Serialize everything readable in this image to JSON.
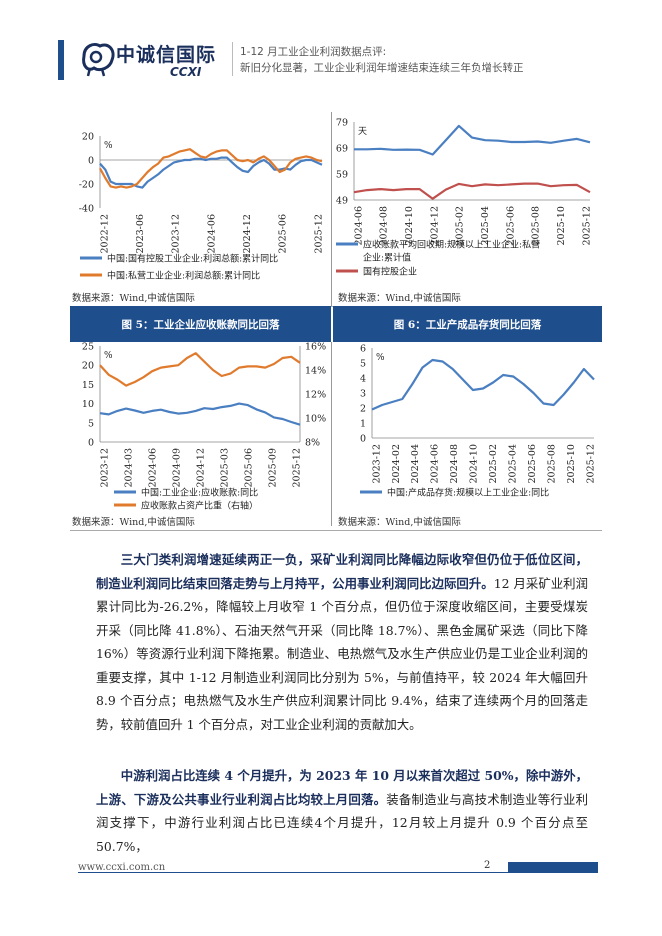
{
  "header": {
    "logo_cn": "中诚信国际",
    "logo_en": "CCXI",
    "title_line1": "1-12 月工业企业利润数据点评:",
    "title_line2": "新旧分化显著，工业企业利润年增速结束连续三年负增长转正",
    "accent": "#1f4e8c"
  },
  "charts_top": {
    "left": {
      "unit": "%",
      "legend": [
        "中国:国有控股工业企业:利润总额:累计同比",
        "中国:私营工业企业:利润总额:累计同比"
      ],
      "source": "数据来源：Wind,中诚信国际"
    },
    "right": {
      "unit": "天",
      "legend": [
        "应收账款平均回收期:规模以上工业企业:私营企业:累计值",
        "国有控股企业"
      ],
      "source": "数据来源：Wind,中诚信国际"
    }
  },
  "figures": {
    "fig5_title": "图 5：工业企业应收账款同比回落",
    "fig6_title": "图 6：工业产成品存货同比回落",
    "fig5_legend": [
      "中国:工业企业:应收账款:同比",
      "应收账款占资产比重（右轴）"
    ],
    "fig6_legend": [
      "中国:产成品存货:规模以上工业企业:同比"
    ],
    "fig5_source": "数据来源：Wind,中诚信国际",
    "fig6_source": "数据来源：Wind,中诚信国际",
    "fig5_unit": "%",
    "fig6_unit": "%"
  },
  "chart_data": [
    {
      "type": "line",
      "x_ticks": [
        "2022-12",
        "2023-06",
        "2023-12",
        "2024-06",
        "2024-12",
        "2025-06",
        "2025-12"
      ],
      "ylim": [
        -40,
        20
      ],
      "y_ticks": [
        20,
        0,
        -20,
        -40
      ],
      "series": [
        {
          "name": "中国:国有控股工业企业:利润总额:累计同比",
          "color": "#4a7fc1",
          "values": [
            -3,
            -8,
            -18,
            -20,
            -20,
            -20,
            -20,
            -22,
            -23,
            -18,
            -15,
            -12,
            -8,
            -5,
            -2,
            -1,
            0,
            0,
            1,
            1,
            0,
            1,
            1,
            2,
            2,
            -2,
            -6,
            -9,
            -10,
            -5,
            -2,
            0,
            -3,
            -8,
            -8,
            -7,
            -8,
            -4,
            -1,
            0,
            0,
            -2,
            -4
          ]
        },
        {
          "name": "中国:私营工业企业:利润总额:累计同比",
          "color": "#e07b2e",
          "values": [
            -7,
            -15,
            -22,
            -23,
            -22,
            -23,
            -22,
            -20,
            -15,
            -10,
            -6,
            -3,
            2,
            3,
            5,
            7,
            8,
            9,
            6,
            3,
            2,
            5,
            7,
            8,
            8,
            4,
            0,
            -1,
            0,
            -2,
            1,
            3,
            0,
            -5,
            -10,
            -8,
            -2,
            1,
            2,
            3,
            2,
            0,
            -1
          ]
        }
      ]
    },
    {
      "type": "line",
      "x_ticks": [
        "2024-06",
        "2024-08",
        "2024-10",
        "2024-12",
        "2025-02",
        "2025-04",
        "2025-06",
        "2025-08",
        "2025-10",
        "2025-12"
      ],
      "ylim": [
        49,
        79
      ],
      "y_ticks": [
        79,
        69,
        59,
        49
      ],
      "series": [
        {
          "name": "应收账款平均回收期:规模以上工业企业:私营企业:累计值",
          "color": "#4a7fc1",
          "values": [
            68.5,
            68.5,
            68.7,
            68.3,
            68.4,
            68.3,
            66.5,
            72,
            77.5,
            73,
            72,
            71.8,
            71.3,
            71.3,
            71.5,
            71,
            71.8,
            72.5,
            71.2
          ]
        },
        {
          "name": "国有控股企业",
          "color": "#c0504d",
          "values": [
            52,
            52.8,
            53.2,
            52.8,
            53.2,
            53.2,
            49.5,
            53,
            55.2,
            54.3,
            55,
            54.7,
            55,
            55.3,
            55.3,
            54.3,
            54.7,
            54.8,
            52
          ]
        }
      ]
    },
    {
      "type": "line",
      "x_ticks": [
        "2023-12",
        "2024-03",
        "2024-06",
        "2024-09",
        "2024-12",
        "2025-03",
        "2025-06",
        "2025-09",
        "2025-12"
      ],
      "ylim": [
        0,
        25
      ],
      "y_ticks": [
        25,
        20,
        15,
        10,
        5,
        0
      ],
      "y2lim": [
        8,
        16
      ],
      "y2_ticks": [
        "16%",
        "14%",
        "12%",
        "10%",
        "8%"
      ],
      "series": [
        {
          "name": "中国:工业企业:应收账款:同比",
          "color": "#4a7fc1",
          "axis": "left",
          "values": [
            7.5,
            7.2,
            8.1,
            8.7,
            8.2,
            7.6,
            8.1,
            8.4,
            7.8,
            7.4,
            7.6,
            8.1,
            8.8,
            8.6,
            9.1,
            9.4,
            10,
            9.6,
            8.5,
            7.7,
            6.4,
            6.0,
            5.2,
            4.5
          ]
        },
        {
          "name": "应收账款占资产比重（右轴）",
          "color": "#e07b2e",
          "axis": "right",
          "values": [
            14.4,
            13.6,
            13.2,
            12.7,
            13.0,
            13.4,
            13.9,
            14.2,
            14.3,
            14.4,
            15.0,
            15.4,
            14.7,
            14.0,
            13.5,
            13.7,
            14.2,
            14.3,
            14.3,
            14.2,
            14.5,
            15.0,
            15.1,
            14.6
          ]
        }
      ]
    },
    {
      "type": "line",
      "x_ticks": [
        "2023-12",
        "2024-02",
        "2024-04",
        "2024-06",
        "2024-08",
        "2024-10",
        "2025-02",
        "2025-04",
        "2025-06",
        "2025-08",
        "2025-10",
        "2025-12"
      ],
      "ylim": [
        0,
        6
      ],
      "y_ticks": [
        6,
        5,
        4,
        3,
        2,
        1,
        0
      ],
      "series": [
        {
          "name": "中国:产成品存货:规模以上工业企业:同比",
          "color": "#4a7fc1",
          "values": [
            1.9,
            2.2,
            2.4,
            2.6,
            3.6,
            4.7,
            5.2,
            5.1,
            4.6,
            3.9,
            3.2,
            3.3,
            3.7,
            4.2,
            4.1,
            3.6,
            3.0,
            2.3,
            2.2,
            2.9,
            3.7,
            4.6,
            3.9
          ]
        }
      ]
    }
  ],
  "body": {
    "p1_bold": "三大门类利润增速延续两正一负，采矿业利润同比降幅边际收窄但仍位于低位区间，制造业利润同比结束回落走势与上月持平，公用事业利润同比边际回升。",
    "p1_rest": "12 月采矿业利润累计同比为-26.2%，降幅较上月收窄 1 个百分点，但仍位于深度收缩区间，主要受煤炭开采（同比降 41.8%）、石油天然气开采（同比降 18.7%）、黑色金属矿采选（同比下降 16%）等资源行业利润下降拖累。制造业、电热燃气及水生产供应业仍是工业企业利润的重要支撑，其中 1-12 月制造业利润同比分别为 5%，与前值持平，较 2024 年大幅回升 8.9 个百分点；电热燃气及水生产供应利润累计同比 9.4%，结束了连续两个月的回落走势，较前值回升 1 个百分点，对工业企业利润的贡献加大。",
    "p2_bold": "中游利润占比连续 4 个月提升，为 2023 年 10 月以来首次超过 50%，除中游外，上游、下游及公共事业行业利润占比均较上月回落。",
    "p2_rest": "装备制造业与高技术制造业等行业利润支撑下，中游行业利润占比已连续4个月提升，12月较上月提升 0.9 个百分点至 50.7%，"
  },
  "footer": {
    "url": "www.ccxi.com.cn",
    "page": "2"
  }
}
